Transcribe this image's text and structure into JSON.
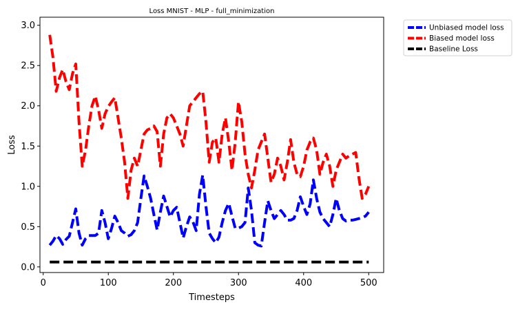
{
  "chart_data": {
    "type": "line",
    "title": "Loss MNIST - MLP - full_minimization",
    "xlabel": "Timesteps",
    "ylabel": "Loss",
    "xlim": [
      -5,
      523
    ],
    "ylim": [
      -0.07,
      3.1
    ],
    "xticks": [
      0,
      100,
      200,
      300,
      400,
      500
    ],
    "yticks": [
      0.0,
      0.5,
      1.0,
      1.5,
      2.0,
      2.5,
      3.0
    ],
    "xtick_labels": [
      "0",
      "100",
      "200",
      "300",
      "400",
      "500"
    ],
    "ytick_labels": [
      "0.0",
      "0.5",
      "1.0",
      "1.5",
      "2.0",
      "2.5",
      "3.0"
    ],
    "grid": false,
    "legend_position": "outside-top-right",
    "line_style": "dashed",
    "x": [
      10,
      15,
      20,
      25,
      30,
      35,
      40,
      45,
      50,
      55,
      60,
      65,
      70,
      75,
      80,
      85,
      90,
      95,
      100,
      105,
      110,
      115,
      120,
      125,
      130,
      135,
      140,
      145,
      150,
      155,
      160,
      165,
      170,
      175,
      180,
      185,
      190,
      195,
      200,
      205,
      210,
      215,
      220,
      225,
      230,
      235,
      240,
      245,
      250,
      255,
      260,
      265,
      270,
      275,
      280,
      285,
      290,
      295,
      300,
      305,
      310,
      315,
      320,
      325,
      330,
      335,
      340,
      345,
      350,
      355,
      360,
      365,
      370,
      375,
      380,
      385,
      390,
      395,
      400,
      405,
      410,
      415,
      420,
      425,
      430,
      435,
      440,
      445,
      450,
      455,
      460,
      465,
      470,
      475,
      480,
      485,
      490,
      495,
      500
    ],
    "series": [
      {
        "name": "Unbiased model loss",
        "color": "#0000ff",
        "values": [
          0.27,
          0.32,
          0.39,
          0.35,
          0.28,
          0.34,
          0.38,
          0.55,
          0.72,
          0.42,
          0.27,
          0.35,
          0.39,
          0.39,
          0.39,
          0.42,
          0.7,
          0.55,
          0.35,
          0.48,
          0.63,
          0.55,
          0.45,
          0.42,
          0.38,
          0.4,
          0.45,
          0.55,
          0.85,
          1.13,
          1.0,
          0.85,
          0.65,
          0.46,
          0.68,
          0.88,
          0.75,
          0.62,
          0.7,
          0.74,
          0.55,
          0.36,
          0.5,
          0.62,
          0.56,
          0.45,
          0.9,
          1.14,
          0.75,
          0.42,
          0.35,
          0.3,
          0.37,
          0.55,
          0.7,
          0.79,
          0.63,
          0.48,
          0.48,
          0.5,
          0.55,
          0.98,
          0.7,
          0.3,
          0.27,
          0.26,
          0.55,
          0.82,
          0.7,
          0.6,
          0.65,
          0.7,
          0.65,
          0.58,
          0.58,
          0.6,
          0.7,
          0.87,
          0.75,
          0.65,
          0.78,
          1.08,
          0.85,
          0.68,
          0.6,
          0.55,
          0.5,
          0.65,
          0.85,
          0.7,
          0.6,
          0.57,
          0.58,
          0.58,
          0.59,
          0.6,
          0.61,
          0.63,
          0.68
        ]
      },
      {
        "name": "Biased model loss",
        "color": "#ff0000",
        "values": [
          2.88,
          2.6,
          2.18,
          2.35,
          2.45,
          2.3,
          2.2,
          2.4,
          2.52,
          1.8,
          1.25,
          1.45,
          1.75,
          2.0,
          2.12,
          1.95,
          1.72,
          1.9,
          1.99,
          2.05,
          2.1,
          1.85,
          1.6,
          1.3,
          0.85,
          1.2,
          1.35,
          1.25,
          1.45,
          1.65,
          1.7,
          1.72,
          1.75,
          1.68,
          1.25,
          1.65,
          1.85,
          1.9,
          1.85,
          1.75,
          1.65,
          1.5,
          1.75,
          2.0,
          2.05,
          2.1,
          2.15,
          2.18,
          1.8,
          1.3,
          1.55,
          1.6,
          1.3,
          1.65,
          1.85,
          1.55,
          1.2,
          1.55,
          2.05,
          1.8,
          1.4,
          1.15,
          0.98,
          1.2,
          1.45,
          1.55,
          1.65,
          1.35,
          1.05,
          1.15,
          1.35,
          1.25,
          1.08,
          1.3,
          1.58,
          1.3,
          1.15,
          1.12,
          1.25,
          1.45,
          1.55,
          1.6,
          1.45,
          1.15,
          1.3,
          1.4,
          1.25,
          1.0,
          1.2,
          1.3,
          1.4,
          1.35,
          1.38,
          1.4,
          1.42,
          1.1,
          0.85,
          0.9,
          1.0
        ]
      },
      {
        "name": "Baseline Loss",
        "color": "#000000",
        "values": [
          0.06,
          0.06,
          0.06,
          0.06,
          0.06,
          0.06,
          0.06,
          0.06,
          0.06,
          0.06,
          0.06,
          0.06,
          0.06,
          0.06,
          0.06,
          0.06,
          0.06,
          0.06,
          0.06,
          0.06,
          0.06,
          0.06,
          0.06,
          0.06,
          0.06,
          0.06,
          0.06,
          0.06,
          0.06,
          0.06,
          0.06,
          0.06,
          0.06,
          0.06,
          0.06,
          0.06,
          0.06,
          0.06,
          0.06,
          0.06,
          0.06,
          0.06,
          0.06,
          0.06,
          0.06,
          0.06,
          0.06,
          0.06,
          0.06,
          0.06,
          0.06,
          0.06,
          0.06,
          0.06,
          0.06,
          0.06,
          0.06,
          0.06,
          0.06,
          0.06,
          0.06,
          0.06,
          0.06,
          0.06,
          0.06,
          0.06,
          0.06,
          0.06,
          0.06,
          0.06,
          0.06,
          0.06,
          0.06,
          0.06,
          0.06,
          0.06,
          0.06,
          0.06,
          0.06,
          0.06,
          0.06,
          0.06,
          0.06,
          0.06,
          0.06,
          0.06,
          0.06,
          0.06,
          0.06,
          0.06,
          0.06,
          0.06,
          0.06,
          0.06,
          0.06,
          0.06,
          0.06,
          0.06,
          0.06
        ]
      }
    ]
  }
}
